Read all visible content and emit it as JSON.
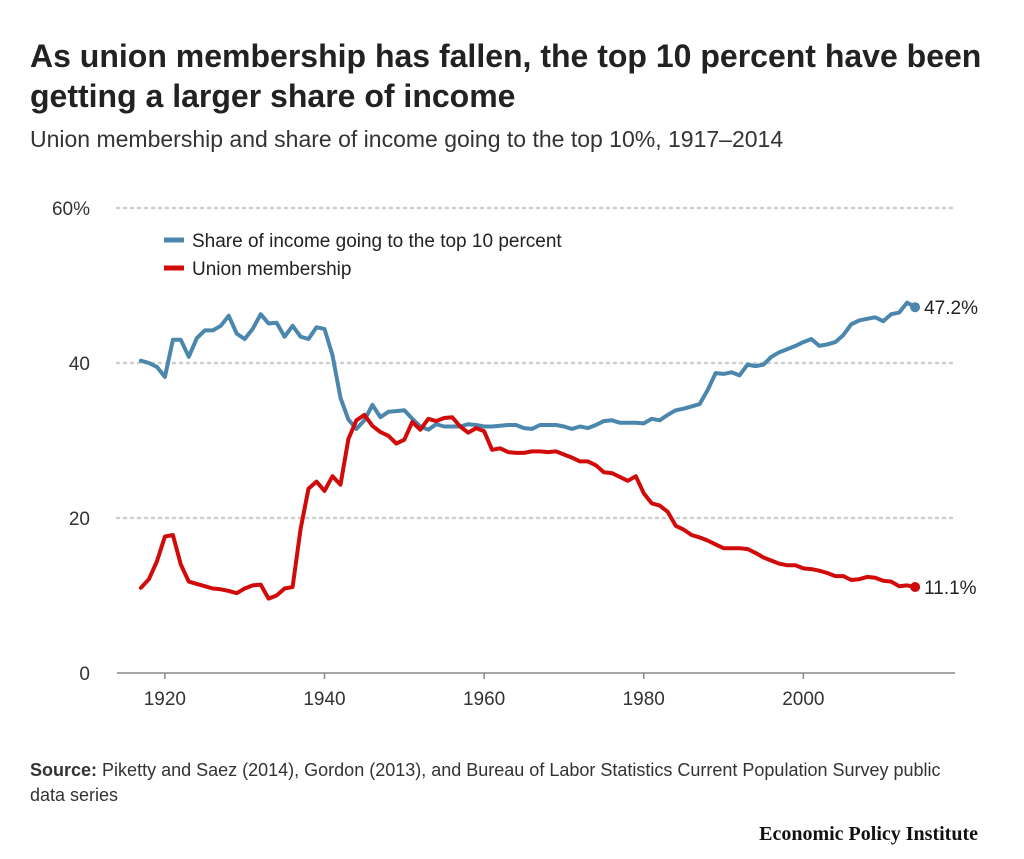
{
  "title": "As union membership has fallen, the top 10 percent have been getting a larger share of income",
  "subtitle": "Union membership and share of income going to the top 10%, 1917–2014",
  "source_label": "Source:",
  "source_text": "Piketty and Saez (2014), Gordon (2013), and Bureau of Labor Statistics Current Population Survey public data series",
  "brand": "Economic Policy Institute",
  "colors": {
    "income": "#4b86ad",
    "union": "#d10a0a",
    "grid": "#cfcfcf",
    "axis": "#888888"
  },
  "chart_data": {
    "type": "line",
    "xlim": [
      1914,
      2019
    ],
    "ylim": [
      0,
      60
    ],
    "xticks": [
      1920,
      1940,
      1960,
      1980,
      2000
    ],
    "yticks": [
      0,
      20,
      40,
      60
    ],
    "ytick_labels": [
      "0",
      "20",
      "40",
      "60%"
    ],
    "grid": true,
    "legend_position": "top-left",
    "end_labels": [
      "47.2%",
      "11.1%"
    ],
    "series": [
      {
        "name": "Share of income going to the top 10 percent",
        "color": "#4b86ad",
        "end_label": "47.2%",
        "x": [
          1917,
          1918,
          1919,
          1920,
          1921,
          1922,
          1923,
          1924,
          1925,
          1926,
          1927,
          1928,
          1929,
          1930,
          1931,
          1932,
          1933,
          1934,
          1935,
          1936,
          1937,
          1938,
          1939,
          1940,
          1941,
          1942,
          1943,
          1944,
          1945,
          1946,
          1947,
          1948,
          1949,
          1950,
          1951,
          1952,
          1953,
          1954,
          1955,
          1956,
          1957,
          1958,
          1959,
          1960,
          1961,
          1962,
          1963,
          1964,
          1965,
          1966,
          1967,
          1968,
          1969,
          1970,
          1971,
          1972,
          1973,
          1974,
          1975,
          1976,
          1977,
          1978,
          1979,
          1980,
          1981,
          1982,
          1983,
          1984,
          1985,
          1986,
          1987,
          1988,
          1989,
          1990,
          1991,
          1992,
          1993,
          1994,
          1995,
          1996,
          1997,
          1998,
          1999,
          2000,
          2001,
          2002,
          2003,
          2004,
          2005,
          2006,
          2007,
          2008,
          2009,
          2010,
          2011,
          2012,
          2013,
          2014
        ],
        "y": [
          40.3,
          40.0,
          39.5,
          38.2,
          43.0,
          43.0,
          40.8,
          43.2,
          44.2,
          44.2,
          44.8,
          46.1,
          43.8,
          43.1,
          44.4,
          46.3,
          45.1,
          45.2,
          43.4,
          44.8,
          43.4,
          43.1,
          44.6,
          44.4,
          41.0,
          35.5,
          32.7,
          31.5,
          32.6,
          34.6,
          33.0,
          33.7,
          33.8,
          33.9,
          32.8,
          31.8,
          31.4,
          32.1,
          31.8,
          31.8,
          31.8,
          32.1,
          32.0,
          31.8,
          31.8,
          31.9,
          32.0,
          32.0,
          31.6,
          31.5,
          32.0,
          32.0,
          32.0,
          31.8,
          31.5,
          31.8,
          31.6,
          32.0,
          32.5,
          32.6,
          32.3,
          32.3,
          32.3,
          32.2,
          32.8,
          32.6,
          33.3,
          33.9,
          34.1,
          34.4,
          34.7,
          36.5,
          38.7,
          38.6,
          38.8,
          38.4,
          39.8,
          39.6,
          39.8,
          40.8,
          41.4,
          41.8,
          42.2,
          42.7,
          43.1,
          42.2,
          42.4,
          42.7,
          43.6,
          45.0,
          45.5,
          45.7,
          45.9,
          45.4,
          46.3,
          46.5,
          47.8,
          47.2
        ]
      },
      {
        "name": "Union membership",
        "color": "#d10a0a",
        "end_label": "11.1%",
        "x": [
          1917,
          1918,
          1919,
          1920,
          1921,
          1922,
          1923,
          1924,
          1925,
          1926,
          1927,
          1928,
          1929,
          1930,
          1931,
          1932,
          1933,
          1934,
          1935,
          1936,
          1937,
          1938,
          1939,
          1940,
          1941,
          1942,
          1943,
          1944,
          1945,
          1946,
          1947,
          1948,
          1949,
          1950,
          1951,
          1952,
          1953,
          1954,
          1955,
          1956,
          1957,
          1958,
          1959,
          1960,
          1961,
          1962,
          1963,
          1964,
          1965,
          1966,
          1967,
          1968,
          1969,
          1970,
          1971,
          1972,
          1973,
          1974,
          1975,
          1976,
          1977,
          1978,
          1979,
          1980,
          1981,
          1982,
          1983,
          1984,
          1985,
          1986,
          1987,
          1988,
          1989,
          1990,
          1991,
          1992,
          1993,
          1994,
          1995,
          1996,
          1997,
          1998,
          1999,
          2000,
          2001,
          2002,
          2003,
          2004,
          2005,
          2006,
          2007,
          2008,
          2009,
          2010,
          2011,
          2012,
          2013,
          2014
        ],
        "y": [
          11.0,
          12.1,
          14.4,
          17.6,
          17.8,
          14.0,
          11.8,
          11.5,
          11.2,
          10.9,
          10.8,
          10.6,
          10.3,
          10.9,
          11.3,
          11.4,
          9.6,
          10.0,
          10.9,
          11.1,
          18.6,
          23.8,
          24.7,
          23.5,
          25.4,
          24.3,
          30.2,
          32.6,
          33.3,
          31.9,
          31.1,
          30.6,
          29.6,
          30.1,
          32.4,
          31.4,
          32.8,
          32.5,
          32.9,
          33.0,
          31.8,
          31.0,
          31.6,
          31.2,
          28.8,
          29.0,
          28.5,
          28.4,
          28.4,
          28.6,
          28.6,
          28.5,
          28.6,
          28.2,
          27.8,
          27.3,
          27.3,
          26.8,
          25.9,
          25.8,
          25.3,
          24.8,
          25.4,
          23.2,
          21.9,
          21.6,
          20.8,
          19.0,
          18.5,
          17.8,
          17.5,
          17.1,
          16.6,
          16.1,
          16.1,
          16.1,
          16.0,
          15.5,
          14.9,
          14.5,
          14.1,
          13.9,
          13.9,
          13.5,
          13.4,
          13.2,
          12.9,
          12.5,
          12.5,
          12.0,
          12.1,
          12.4,
          12.3,
          11.9,
          11.8,
          11.2,
          11.3,
          11.1
        ]
      }
    ]
  }
}
